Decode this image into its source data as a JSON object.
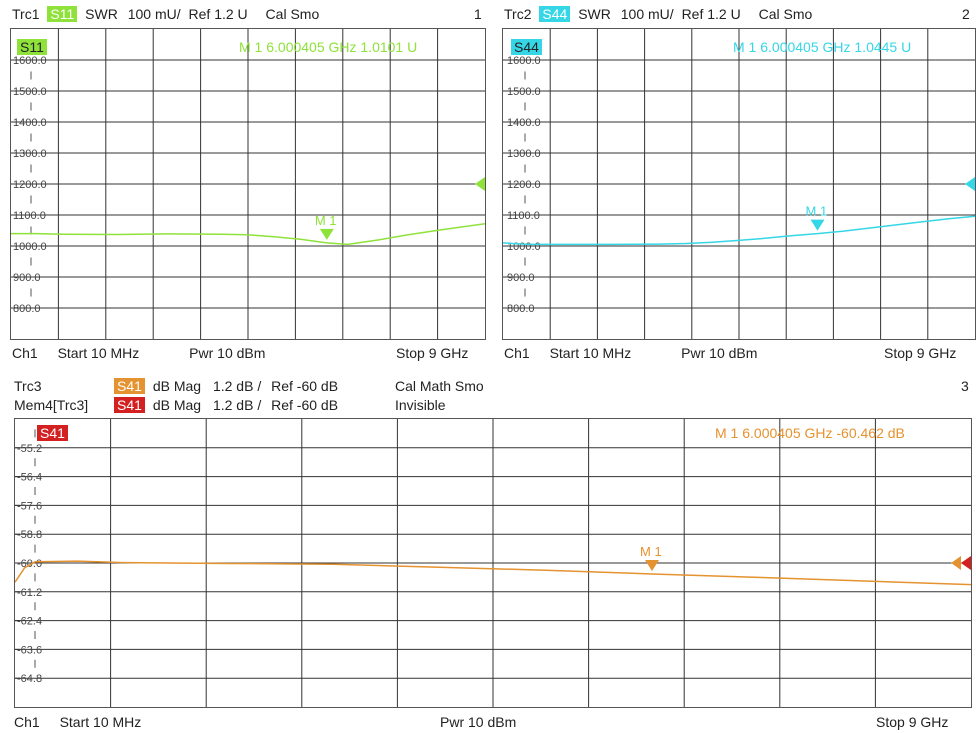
{
  "top_left": {
    "trace": "Trc1",
    "param": "S11",
    "format": "SWR",
    "scale": "100 mU/",
    "ref": "Ref 1.2 U",
    "cal": "Cal Smo",
    "index": "1",
    "badge": "S11",
    "marker_name": "M 1",
    "marker_readout": "M 1  6.000405 GHz    1.0101  U",
    "color": "#8ee23a",
    "yticks": [
      "1600.0",
      "1500.0",
      "1400.0",
      "1300.0",
      "1200.0",
      "1100.0",
      "1000.0",
      "900.0",
      "800.0"
    ],
    "footer": {
      "ch": "Ch1",
      "start": "Start  10 MHz",
      "pwr": "Pwr  10 dBm",
      "stop": "Stop  9 GHz"
    }
  },
  "top_right": {
    "trace": "Trc2",
    "param": "S44",
    "format": "SWR",
    "scale": "100 mU/",
    "ref": "Ref 1.2 U",
    "cal": "Cal Smo",
    "index": "2",
    "badge": "S44",
    "marker_name": "M 1",
    "marker_readout": "M 1  6.000405 GHz    1.0445  U",
    "color": "#35d6e6",
    "yticks": [
      "1600.0",
      "1500.0",
      "1400.0",
      "1300.0",
      "1200.0",
      "1100.0",
      "1000.0",
      "900.0",
      "800.0"
    ],
    "footer": {
      "ch": "Ch1",
      "start": "Start  10 MHz",
      "pwr": "Pwr  10 dBm",
      "stop": "Stop  9 GHz"
    }
  },
  "bottom": {
    "trace": "Trc3",
    "param": "S41",
    "format": "dB Mag",
    "scale": "1.2 dB /",
    "ref": "Ref -60 dB",
    "cal": "Cal Math Smo",
    "index": "3",
    "mem_trace": "Mem4[Trc3]",
    "mem_param": "S41",
    "mem_format": "dB Mag",
    "mem_scale": "1.2 dB /",
    "mem_ref": "Ref -60 dB",
    "mem_state": "Invisible",
    "badge": "S41",
    "marker_name": "M 1",
    "marker_readout": "M 1  6.000405 GHz   -60.462  dB",
    "color": "#e59230",
    "mem_color": "#d32020",
    "yticks": [
      "-55.2",
      "-56.4",
      "-57.6",
      "-58.8",
      "-60.0",
      "-61.2",
      "-62.4",
      "-63.6",
      "-64.8"
    ],
    "footer": {
      "ch": "Ch1",
      "start": "Start  10 MHz",
      "pwr": "Pwr  10 dBm",
      "stop": "Stop  9 GHz"
    }
  },
  "chart_data": [
    {
      "type": "line",
      "title": "Trc1 S11 SWR",
      "ylabel": "",
      "xlabel": "",
      "xlim": [
        0.01,
        9
      ],
      "ylim": [
        700,
        1700
      ],
      "grid": true,
      "series": [
        {
          "name": "S11",
          "x": [
            0.01,
            0.5,
            1.0,
            2.0,
            3.0,
            4.0,
            4.5,
            5.0,
            5.5,
            6.0,
            6.4,
            7.0,
            7.5,
            8.0,
            8.5,
            9.0
          ],
          "y": [
            1040,
            1040,
            1038,
            1037,
            1039,
            1038,
            1036,
            1030,
            1022,
            1010,
            1005,
            1020,
            1035,
            1048,
            1060,
            1072
          ]
        }
      ],
      "marker": {
        "x": 6.000405,
        "y": 1.0101
      }
    },
    {
      "type": "line",
      "title": "Trc2 S44 SWR",
      "ylabel": "",
      "xlabel": "",
      "xlim": [
        0.01,
        9
      ],
      "ylim": [
        700,
        1700
      ],
      "grid": true,
      "series": [
        {
          "name": "S44",
          "x": [
            0.01,
            0.5,
            1.0,
            2.0,
            3.0,
            3.5,
            4.0,
            4.5,
            5.0,
            5.5,
            6.0,
            6.5,
            7.0,
            7.5,
            8.0,
            8.5,
            9.0
          ],
          "y": [
            1010,
            1005,
            1005,
            1005,
            1006,
            1008,
            1012,
            1018,
            1025,
            1033,
            1040,
            1048,
            1058,
            1068,
            1078,
            1088,
            1096
          ]
        }
      ],
      "marker": {
        "x": 6.000405,
        "y": 1.0445
      }
    },
    {
      "type": "line",
      "title": "Trc3 S41 dB Mag",
      "ylabel": "",
      "xlabel": "",
      "xlim": [
        0.01,
        9
      ],
      "ylim": [
        -66.0,
        -54.0
      ],
      "grid": true,
      "series": [
        {
          "name": "S41",
          "x": [
            0.01,
            0.1,
            0.2,
            0.6,
            1.0,
            2.0,
            3.0,
            4.0,
            5.0,
            6.0,
            7.0,
            8.0,
            9.0
          ],
          "y": [
            -60.8,
            -60.2,
            -59.95,
            -59.92,
            -59.98,
            -60.02,
            -60.05,
            -60.18,
            -60.3,
            -60.46,
            -60.6,
            -60.75,
            -60.9
          ]
        }
      ],
      "marker": {
        "x": 6.000405,
        "y": -60.462
      }
    }
  ]
}
